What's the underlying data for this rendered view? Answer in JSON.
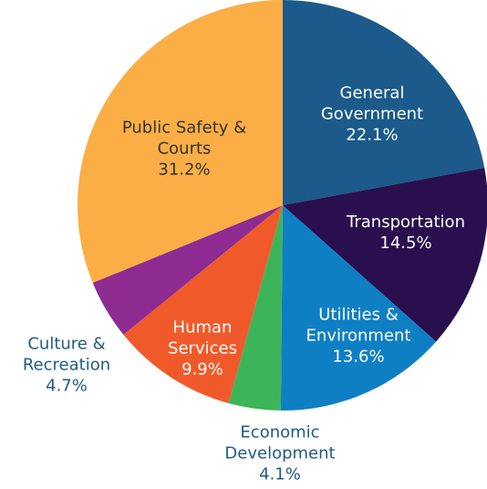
{
  "chart_data": {
    "type": "pie",
    "categories": [
      "General Government",
      "Transportation",
      "Utilities & Environment",
      "Economic Development",
      "Human Services",
      "Culture & Recreation",
      "Public Safety & Courts"
    ],
    "values": [
      22.1,
      14.5,
      13.6,
      4.1,
      9.9,
      4.7,
      31.2
    ],
    "value_labels": [
      "22.1%",
      "14.5%",
      "13.6%",
      "4.1%",
      "9.9%",
      "4.7%",
      "31.2%"
    ],
    "colors": [
      "#1b5a8a",
      "#2a0f4f",
      "#0f7fc4",
      "#3cb55a",
      "#f05a2b",
      "#8e2b91",
      "#fbae45"
    ]
  }
}
